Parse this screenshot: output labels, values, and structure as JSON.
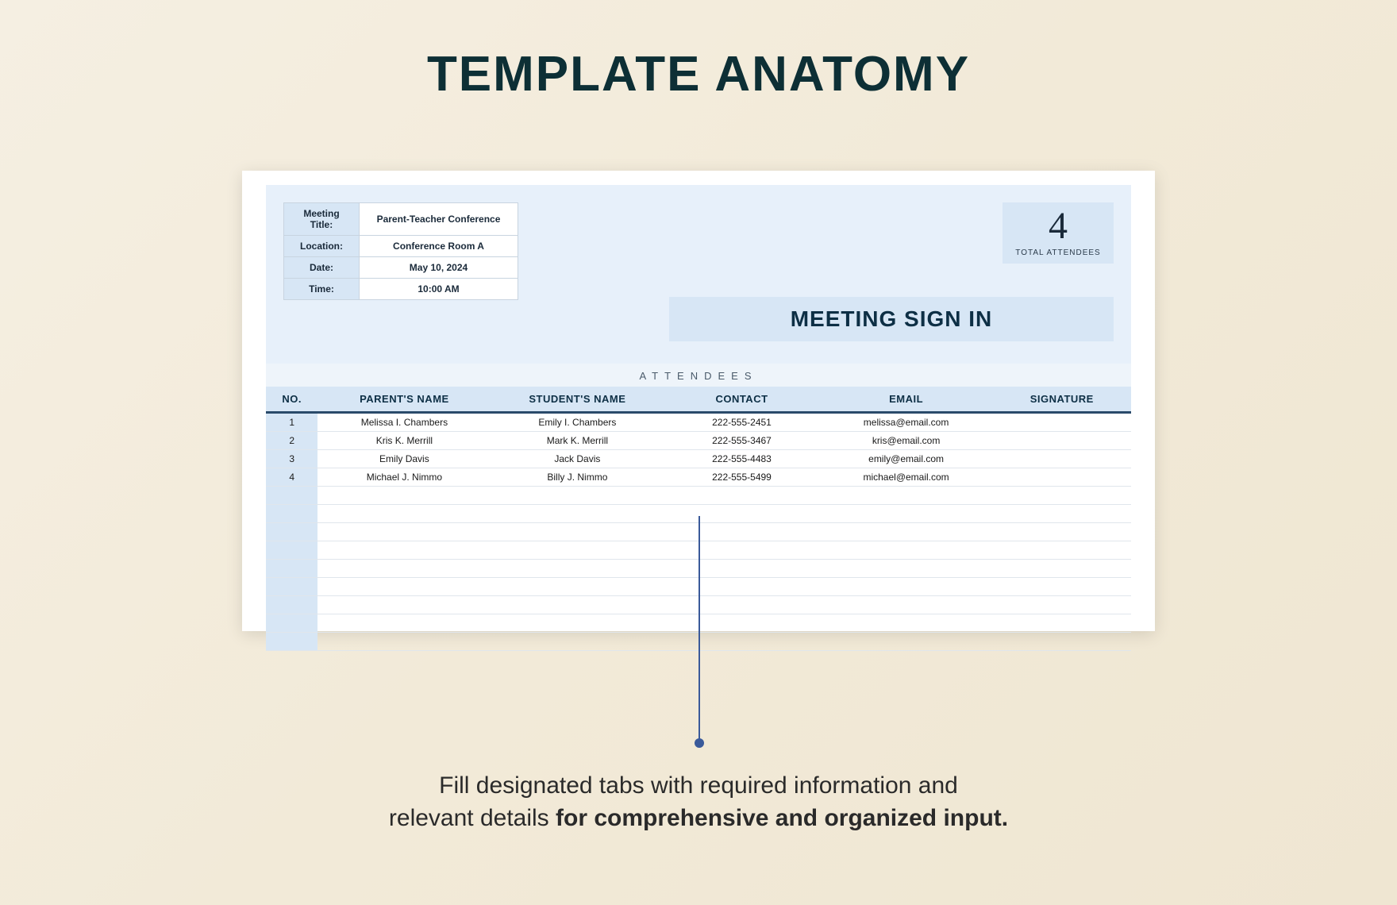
{
  "page": {
    "title": "TEMPLATE ANATOMY",
    "caption_line1": "Fill designated tabs with required information and",
    "caption_line2_pre": "relevant details ",
    "caption_line2_bold": "for comprehensive and organized input.",
    "background_gradient": [
      "#f5efe2",
      "#efe6d2"
    ],
    "title_color": "#0d2f35"
  },
  "template": {
    "info": {
      "labels": {
        "meeting_title": "Meeting Title:",
        "location": "Location:",
        "date": "Date:",
        "time": "Time:"
      },
      "values": {
        "meeting_title": "Parent-Teacher Conference",
        "location": "Conference Room A",
        "date": "May 10, 2024",
        "time": "10:00 AM"
      }
    },
    "attendee_summary": {
      "count": "4",
      "label": "TOTAL ATTENDEES"
    },
    "signin_title": "MEETING SIGN IN",
    "attendees_heading": "ATTENDEES",
    "columns": {
      "no": "NO.",
      "parent": "PARENT'S NAME",
      "student": "STUDENT'S NAME",
      "contact": "CONTACT",
      "email": "EMAIL",
      "signature": "SIGNATURE"
    },
    "rows": [
      {
        "no": "1",
        "parent": "Melissa I. Chambers",
        "student": "Emily I. Chambers",
        "contact": "222-555-2451",
        "email": "melissa@email.com",
        "signature": ""
      },
      {
        "no": "2",
        "parent": "Kris K. Merrill",
        "student": "Mark K. Merrill",
        "contact": "222-555-3467",
        "email": "kris@email.com",
        "signature": ""
      },
      {
        "no": "3",
        "parent": "Emily Davis",
        "student": "Jack Davis",
        "contact": "222-555-4483",
        "email": "emily@email.com",
        "signature": ""
      },
      {
        "no": "4",
        "parent": "Michael J. Nimmo",
        "student": "Billy J. Nimmo",
        "contact": "222-555-5499",
        "email": "michael@email.com",
        "signature": ""
      }
    ],
    "empty_row_count": 9,
    "colors": {
      "header_band": "#e7f0fa",
      "accent_fill": "#d7e6f5",
      "border": "#c8d4e0",
      "th_underline": "#2a4a6a",
      "callout": "#3a5a9a"
    },
    "column_widths_pct": [
      6,
      20,
      20,
      18,
      20,
      16
    ]
  }
}
